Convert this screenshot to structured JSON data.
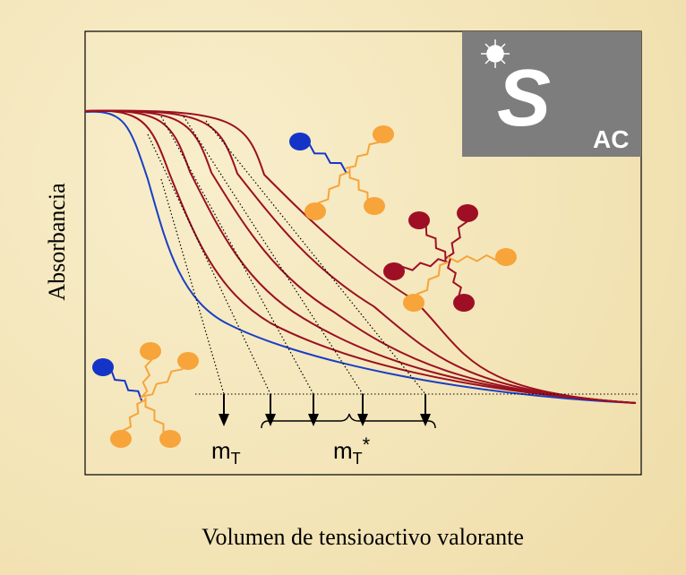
{
  "y_axis_label": "Absorbancia",
  "x_axis_label": "Volumen de tensioactivo valorante",
  "marker_a": {
    "main": "m",
    "sub": "T"
  },
  "marker_b": {
    "main": "m",
    "sub": "T",
    "sup": "*"
  },
  "logo": {
    "letter": "S",
    "sub": "AC"
  }
}
